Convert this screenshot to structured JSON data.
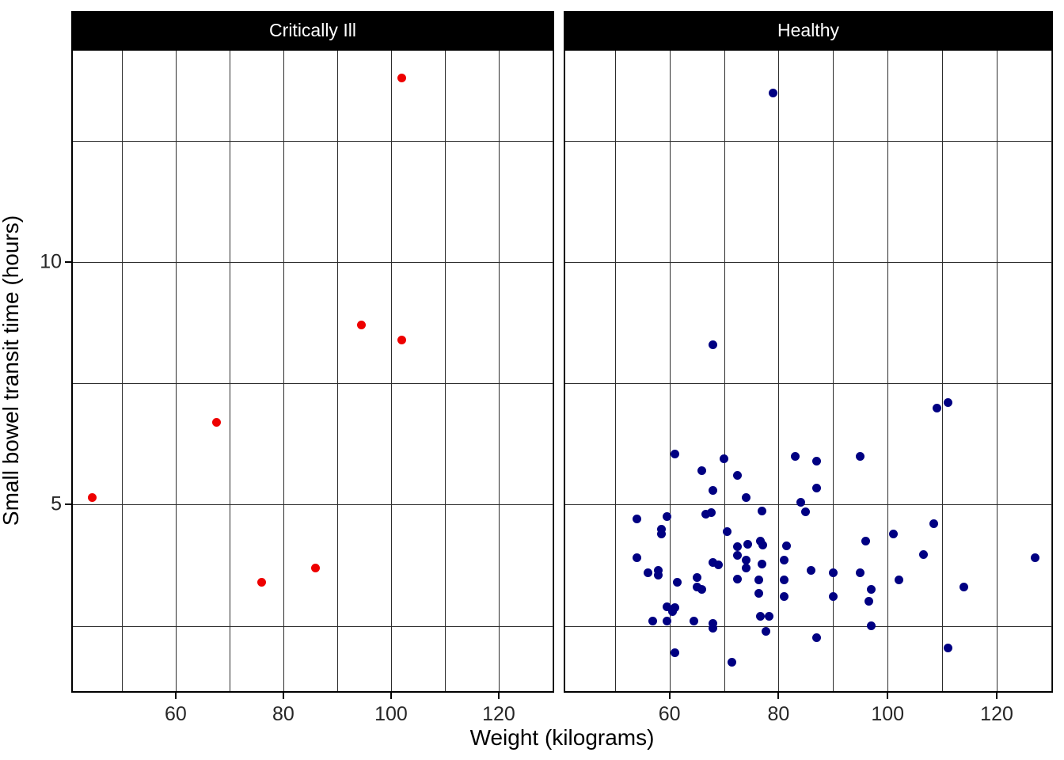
{
  "figure": {
    "background": "#ffffff",
    "strip_background": "#000000",
    "strip_text_color": "#ffffff",
    "gridline_color": "#2d2d2d"
  },
  "chart_data": {
    "type": "scatter",
    "title": "",
    "xlabel": "Weight (kilograms)",
    "ylabel": "Small bowel transit time (hours)",
    "x_ticks": [
      60,
      80,
      100,
      120
    ],
    "y_ticks": [
      5,
      10
    ],
    "x_gridlines": [
      50,
      60,
      70,
      80,
      90,
      100,
      110,
      120,
      130
    ],
    "y_gridlines": [
      2.5,
      5,
      7.5,
      10,
      12.5
    ],
    "xlim": [
      40.6,
      130.3
    ],
    "ylim": [
      1.12,
      14.4
    ],
    "grid": "on",
    "legend": "none",
    "facets": [
      {
        "label": "Critically Ill",
        "color": "#ee0000",
        "points": [
          [
            44.5,
            5.15
          ],
          [
            67.6,
            6.7
          ],
          [
            76,
            3.4
          ],
          [
            86,
            3.7
          ],
          [
            94.5,
            8.7
          ],
          [
            102,
            8.4
          ],
          [
            102,
            13.8
          ]
        ]
      },
      {
        "label": "Healthy",
        "color": "#000082",
        "points": [
          [
            79,
            13.5
          ],
          [
            68,
            8.3
          ],
          [
            111,
            7.1
          ],
          [
            109,
            7.0
          ],
          [
            61,
            6.05
          ],
          [
            70,
            5.95
          ],
          [
            95,
            6.0
          ],
          [
            83,
            6.0
          ],
          [
            87,
            5.9
          ],
          [
            66,
            5.7
          ],
          [
            72.5,
            5.6
          ],
          [
            87,
            5.35
          ],
          [
            68,
            5.3
          ],
          [
            74,
            5.15
          ],
          [
            84,
            5.05
          ],
          [
            77,
            4.87
          ],
          [
            85,
            4.85
          ],
          [
            67.7,
            4.84
          ],
          [
            66.7,
            4.8
          ],
          [
            59.5,
            4.75
          ],
          [
            54,
            4.7
          ],
          [
            108.5,
            4.6
          ],
          [
            58.5,
            4.5
          ],
          [
            70.5,
            4.45
          ],
          [
            58.5,
            4.4
          ],
          [
            101,
            4.4
          ],
          [
            96,
            4.25
          ],
          [
            76.6,
            4.25
          ],
          [
            74.4,
            4.18
          ],
          [
            77.1,
            4.17
          ],
          [
            81.5,
            4.15
          ],
          [
            72.4,
            4.14
          ],
          [
            106.5,
            3.97
          ],
          [
            72.4,
            3.95
          ],
          [
            54,
            3.9
          ],
          [
            127,
            3.9
          ],
          [
            74.1,
            3.86
          ],
          [
            81,
            3.85
          ],
          [
            68,
            3.8
          ],
          [
            76.9,
            3.77
          ],
          [
            69,
            3.75
          ],
          [
            74.1,
            3.7
          ],
          [
            58,
            3.65
          ],
          [
            86,
            3.65
          ],
          [
            90,
            3.6
          ],
          [
            95,
            3.6
          ],
          [
            56,
            3.6
          ],
          [
            58,
            3.55
          ],
          [
            65,
            3.5
          ],
          [
            72.4,
            3.46
          ],
          [
            76.4,
            3.45
          ],
          [
            81,
            3.45
          ],
          [
            102,
            3.45
          ],
          [
            61.5,
            3.4
          ],
          [
            114,
            3.3
          ],
          [
            65,
            3.3
          ],
          [
            66,
            3.25
          ],
          [
            97,
            3.25
          ],
          [
            76.4,
            3.17
          ],
          [
            81,
            3.1
          ],
          [
            90,
            3.1
          ],
          [
            96.5,
            3.0
          ],
          [
            59.5,
            2.9
          ],
          [
            61,
            2.87
          ],
          [
            60.5,
            2.8
          ],
          [
            76.6,
            2.7
          ],
          [
            78.3,
            2.7
          ],
          [
            57,
            2.6
          ],
          [
            59.5,
            2.6
          ],
          [
            64.5,
            2.6
          ],
          [
            68,
            2.55
          ],
          [
            97,
            2.5
          ],
          [
            68,
            2.45
          ],
          [
            77.7,
            2.38
          ],
          [
            87,
            2.25
          ],
          [
            111,
            2.05
          ],
          [
            61,
            1.95
          ],
          [
            71.5,
            1.75
          ]
        ]
      }
    ]
  }
}
